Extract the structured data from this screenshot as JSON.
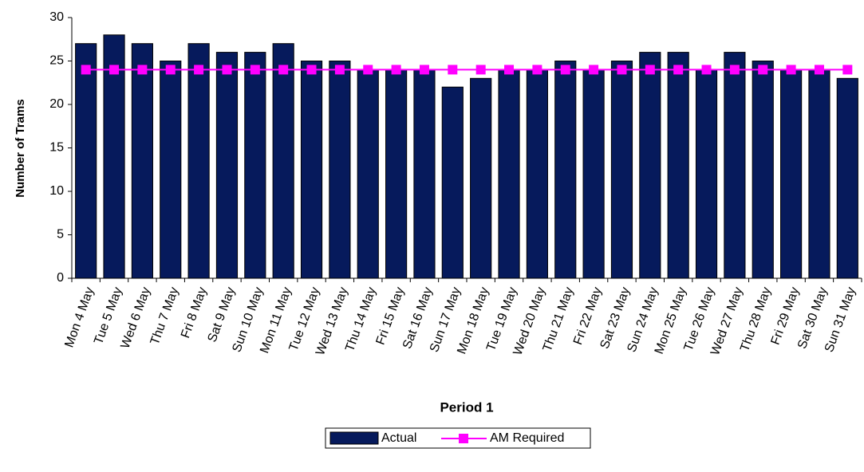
{
  "chart_data": {
    "type": "bar_line",
    "x_label": "Period 1",
    "y_label": "Number of Trams",
    "categories": [
      "Mon 4 May",
      "Tue 5 May",
      "Wed 6 May",
      "Thu 7 May",
      "Fri 8 May",
      "Sat 9 May",
      "Sun 10 May",
      "Mon 11 May",
      "Tue 12 May",
      "Wed 13 May",
      "Thu 14 May",
      "Fri 15 May",
      "Sat 16 May",
      "Sun 17 May",
      "Mon 18 May",
      "Tue 19 May",
      "Wed 20 May",
      "Thu 21 May",
      "Fri 22 May",
      "Sat 23 May",
      "Sun 24 May",
      "Mon 25 May",
      "Tue 26 May",
      "Wed 27 May",
      "Thu 28 May",
      "Fri 29 May",
      "Sat 30 May",
      "Sun 31 May"
    ],
    "series": [
      {
        "name": "Actual",
        "type": "bar",
        "color": "#061a5c",
        "values": [
          27,
          28,
          27,
          25,
          27,
          26,
          26,
          27,
          25,
          25,
          24,
          24,
          24,
          22,
          23,
          24,
          24,
          25,
          24,
          25,
          26,
          26,
          24,
          26,
          25,
          24,
          24,
          23
        ]
      },
      {
        "name": "AM Required",
        "type": "line",
        "color": "#ff00ff",
        "values": [
          24,
          24,
          24,
          24,
          24,
          24,
          24,
          24,
          24,
          24,
          24,
          24,
          24,
          24,
          24,
          24,
          24,
          24,
          24,
          24,
          24,
          24,
          24,
          24,
          24,
          24,
          24,
          24
        ]
      }
    ],
    "ylim": [
      0,
      30
    ],
    "yticks": [
      0,
      5,
      10,
      15,
      20,
      25,
      30
    ],
    "legend": "bottom"
  }
}
